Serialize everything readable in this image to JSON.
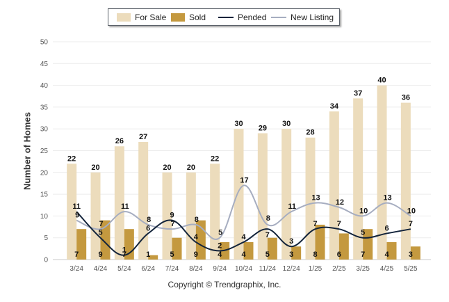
{
  "chart_data": {
    "type": "bar",
    "categories": [
      "3/24",
      "4/24",
      "5/24",
      "6/24",
      "7/24",
      "8/24",
      "9/24",
      "10/24",
      "11/24",
      "12/24",
      "1/25",
      "2/25",
      "3/25",
      "4/25",
      "5/25"
    ],
    "ylabel": "Number of Homes",
    "ylim": [
      0,
      50
    ],
    "yticks": [
      0,
      5,
      10,
      15,
      20,
      25,
      30,
      35,
      40,
      45,
      50
    ],
    "grid": true,
    "legend_placement": "top-center",
    "series": [
      {
        "name": "For Sale",
        "kind": "bar",
        "color": "#ecdcbc",
        "values": [
          22,
          20,
          26,
          27,
          20,
          20,
          22,
          30,
          29,
          30,
          28,
          34,
          37,
          40,
          36
        ]
      },
      {
        "name": "Sold",
        "kind": "bar",
        "color": "#c4993f",
        "values": [
          7,
          9,
          7,
          1,
          5,
          9,
          4,
          4,
          5,
          3,
          8,
          6,
          7,
          4,
          3
        ]
      },
      {
        "name": "Pended",
        "kind": "line",
        "color": "#13243b",
        "values": [
          11,
          5,
          1,
          6,
          9,
          4,
          2,
          4,
          7,
          3,
          7,
          7,
          5,
          6,
          7
        ]
      },
      {
        "name": "New Listing",
        "kind": "line",
        "color": "#a6adc0",
        "values": [
          9,
          7,
          11,
          8,
          7,
          8,
          5,
          17,
          8,
          11,
          13,
          12,
          10,
          13,
          10
        ]
      }
    ]
  },
  "footer": "Copyright © Trendgraphix, Inc."
}
